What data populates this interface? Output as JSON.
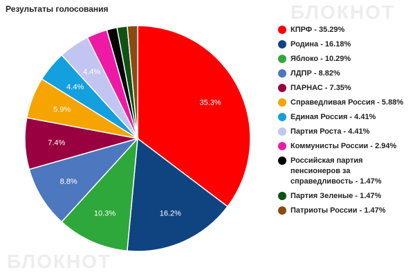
{
  "watermark": "БЛОКНОТ",
  "chart_data": {
    "type": "pie",
    "title": "Результаты голосования",
    "legend_position": "right",
    "slices": [
      {
        "name": "КПРФ",
        "value": 35.29,
        "label": "35.3%",
        "legend": "КПРФ - 35.29%",
        "color": "#ff0000"
      },
      {
        "name": "Родина",
        "value": 16.18,
        "label": "16.2%",
        "legend": "Родина - 16.18%",
        "color": "#0f4480"
      },
      {
        "name": "Яблоко",
        "value": 10.29,
        "label": "10.3%",
        "legend": "Яблоко - 10.29%",
        "color": "#2ea83a"
      },
      {
        "name": "ЛДПР",
        "value": 8.82,
        "label": "8.8%",
        "legend": "ЛДПР - 8.82%",
        "color": "#4d77be"
      },
      {
        "name": "ПАРНАС",
        "value": 7.35,
        "label": "7.4%",
        "legend": "ПАРНАС - 7.35%",
        "color": "#990040"
      },
      {
        "name": "Справедливая Россия",
        "value": 5.88,
        "label": "5.9%",
        "legend": "Справедливая Россия - 5.88%",
        "color": "#f5a400"
      },
      {
        "name": "Единая Россия",
        "value": 4.41,
        "label": "4.4%",
        "legend": "Единая Россия - 4.41%",
        "color": "#149fde"
      },
      {
        "name": "Партия Роста",
        "value": 4.41,
        "label": "4.4%",
        "legend": "Партия Роста - 4.41%",
        "color": "#c2c5f2"
      },
      {
        "name": "Коммунисты России",
        "value": 2.94,
        "label": "",
        "legend": "Коммунисты России - 2.94%",
        "color": "#ee1aa6"
      },
      {
        "name": "Российская партия пенсионеров за справедливость",
        "value": 1.47,
        "label": "",
        "legend": "Российская партия пенсионеров за справедливость - 1.47%",
        "color": "#050505"
      },
      {
        "name": "Партия Зеленые",
        "value": 1.47,
        "label": "",
        "legend": "Партия Зеленые - 1.47%",
        "color": "#0e5314"
      },
      {
        "name": "Патриоты России",
        "value": 1.47,
        "label": "",
        "legend": "Патриоты России - 1.47%",
        "color": "#8a4a12"
      }
    ]
  }
}
